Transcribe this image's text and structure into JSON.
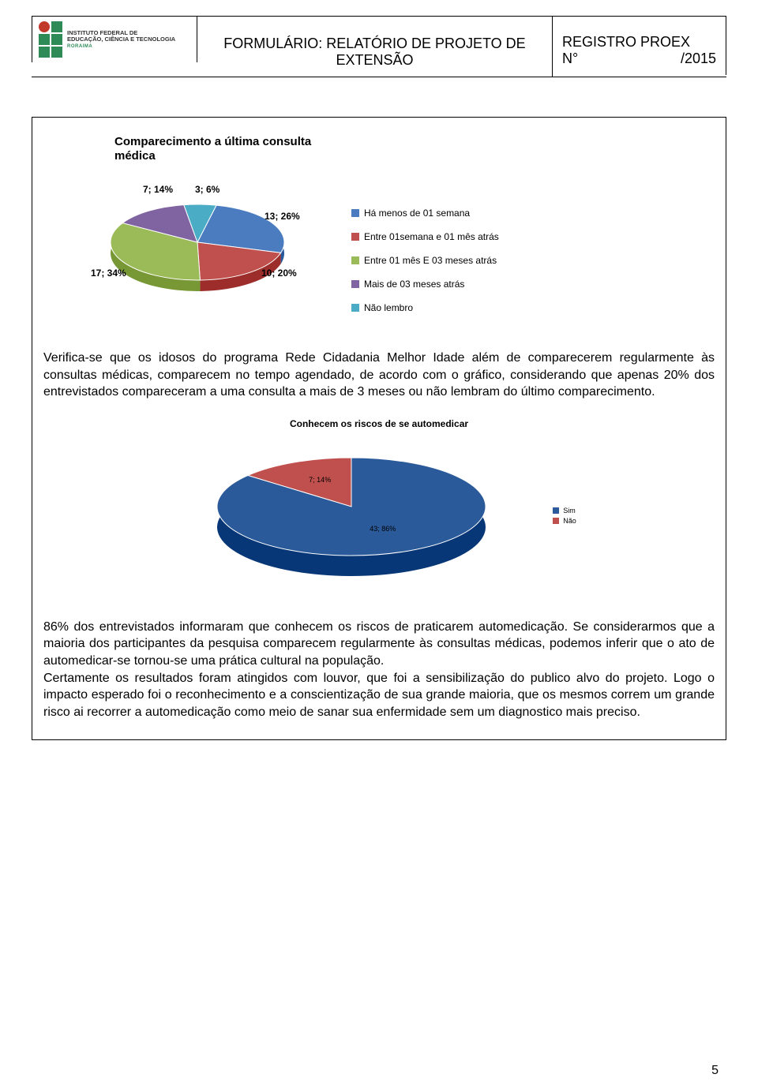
{
  "header": {
    "logo_inst_line1": "INSTITUTO FEDERAL DE",
    "logo_inst_line2": "EDUCAÇÃO, CIÊNCIA E TECNOLOGIA",
    "logo_sub": "RORAIMA",
    "form_title_line1": "FORMULÁRIO: RELATÓRIO DE PROJETO DE",
    "form_title_line2": "EXTENSÃO",
    "reg_line1": "REGISTRO PROEX",
    "reg_n_label": "N°",
    "reg_year": "/2015"
  },
  "chart1": {
    "type": "pie",
    "title_line1": "Comparecimento a última consulta",
    "title_line2": "médica",
    "background_color": "#ffffff",
    "slices": [
      {
        "label": "13; 26%",
        "value": 26,
        "color": "#4a7cbf",
        "legend": "Há menos de 01 semana"
      },
      {
        "label": "10; 20%",
        "value": 20,
        "color": "#c0504d",
        "legend": "Entre 01semana e 01 mês atrás"
      },
      {
        "label": "17; 34%",
        "value": 34,
        "color": "#9bbb59",
        "legend": "Entre 01 mês E 03 meses atrás"
      },
      {
        "label": "7; 14%",
        "value": 14,
        "color": "#8064a2",
        "legend": "Mais de 03 meses atrás"
      },
      {
        "label": "3; 6%",
        "value": 6,
        "color": "#4bacc6",
        "legend": "Não lembro"
      }
    ],
    "label_fontsize": 12,
    "label_fontweight": "bold",
    "legend_fontsize": 12
  },
  "para1": "Verifica-se que os idosos do programa Rede Cidadania Melhor Idade além de comparecerem regularmente às consultas médicas, comparecem no tempo agendado, de acordo com o gráfico, considerando que apenas 20% dos entrevistados compareceram a uma consulta a mais de 3 meses ou não lembram do último comparecimento.",
  "chart2": {
    "type": "pie",
    "title": "Conhecem os riscos de se automedicar",
    "background_color": "#ffffff",
    "slices": [
      {
        "label": "7; 14%",
        "value": 14,
        "color": "#c0504d",
        "legend": "Não"
      },
      {
        "label": "43; 86%",
        "value": 86,
        "color": "#2a5a9a",
        "legend": "Sim"
      }
    ],
    "label_fontsize": 9,
    "legend_fontsize": 9
  },
  "para2": "86% dos entrevistados informaram que conhecem os riscos de praticarem automedicação. Se considerarmos que a maioria dos participantes da pesquisa comparecem regularmente às consultas médicas, podemos inferir que o ato de automedicar-se tornou-se uma prática cultural na população.",
  "para3": "Certamente os resultados foram atingidos com louvor, que foi a sensibilização do publico alvo do projeto. Logo o impacto esperado foi o reconhecimento e a conscientização de sua grande maioria, que os mesmos correm um grande risco ai recorrer a automedicação como meio de sanar sua enfermidade sem um diagnostico mais preciso.",
  "page_number": "5"
}
